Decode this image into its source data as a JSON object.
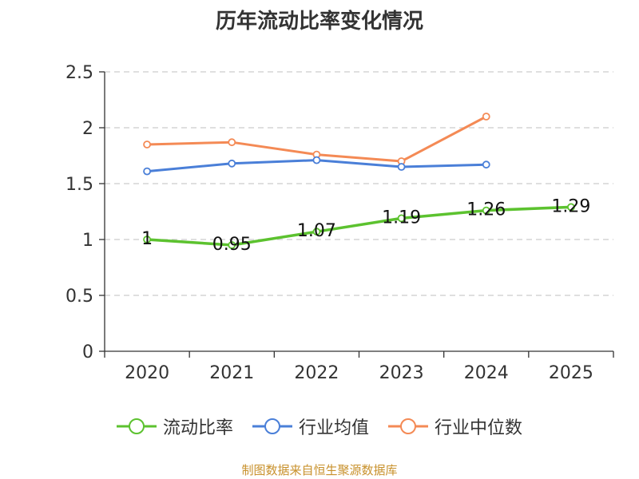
{
  "chart_data": {
    "type": "line",
    "title": "历年流动比率变化情况",
    "categories": [
      "2020",
      "2021",
      "2022",
      "2023",
      "2024",
      "2025"
    ],
    "ylim": [
      0,
      2.5
    ],
    "yticks": [
      0,
      0.5,
      1,
      1.5,
      2,
      2.5
    ],
    "ytick_labels": [
      "0",
      "0.5",
      "1",
      "1.5",
      "2",
      "2.5"
    ],
    "grid": true,
    "legend_position": "bottom",
    "series": [
      {
        "name": "流动比率",
        "color": "#5cc22f",
        "values": [
          1.0,
          0.95,
          1.07,
          1.19,
          1.26,
          1.29
        ],
        "labels": [
          "1",
          "0.95",
          "1.07",
          "1.19",
          "1.26",
          "1.29"
        ],
        "show_labels": true
      },
      {
        "name": "行业均值",
        "color": "#4a7fd8",
        "values": [
          1.61,
          1.68,
          1.71,
          1.65,
          1.67,
          null
        ],
        "show_labels": false
      },
      {
        "name": "行业中位数",
        "color": "#f48a55",
        "values": [
          1.85,
          1.87,
          1.76,
          1.7,
          2.1,
          null
        ],
        "show_labels": false
      }
    ]
  },
  "footer": {
    "source": "制图数据来自恒生聚源数据库"
  }
}
